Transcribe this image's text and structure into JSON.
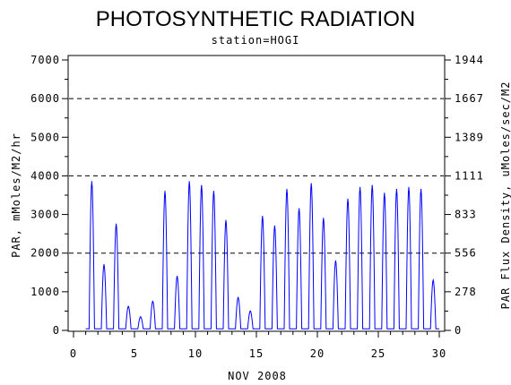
{
  "chart_data": {
    "type": "line",
    "title": "PHOTOSYNTHETIC RADIATION",
    "subtitle": "station=HOGI",
    "xlabel": "NOV 2008",
    "ylabel": "PAR, mMoles/M2/hr",
    "y2label": "PAR Flux Density, uMoles/sec/M2",
    "xlim": [
      0,
      30
    ],
    "ylim": [
      0,
      7000
    ],
    "xticks": [
      "0",
      "5",
      "10",
      "15",
      "20",
      "25",
      "30"
    ],
    "yticks": [
      "0",
      "1000",
      "2000",
      "3000",
      "4000",
      "5000",
      "6000",
      "7000"
    ],
    "y2ticks": [
      "0",
      "278",
      "556",
      "833",
      "1111",
      "1389",
      "1667",
      "1944"
    ],
    "dashed_gridlines_y": [
      2000,
      4000,
      6000
    ],
    "line_color": "#0000ff",
    "series": [
      {
        "name": "",
        "daily_peaks": [
          {
            "day": 1.5,
            "value": 3850
          },
          {
            "day": 2.5,
            "value": 1700
          },
          {
            "day": 3.5,
            "value": 2750
          },
          {
            "day": 4.5,
            "value": 620
          },
          {
            "day": 5.5,
            "value": 350
          },
          {
            "day": 6.5,
            "value": 750
          },
          {
            "day": 7.5,
            "value": 3600
          },
          {
            "day": 8.5,
            "value": 1400
          },
          {
            "day": 9.5,
            "value": 3850
          },
          {
            "day": 10.5,
            "value": 3750
          },
          {
            "day": 11.5,
            "value": 3600
          },
          {
            "day": 12.5,
            "value": 2850
          },
          {
            "day": 13.5,
            "value": 850
          },
          {
            "day": 14.5,
            "value": 500
          },
          {
            "day": 15.5,
            "value": 2950
          },
          {
            "day": 16.5,
            "value": 2700
          },
          {
            "day": 17.5,
            "value": 3650
          },
          {
            "day": 18.5,
            "value": 3150
          },
          {
            "day": 19.5,
            "value": 3800
          },
          {
            "day": 20.5,
            "value": 2900
          },
          {
            "day": 21.5,
            "value": 1800
          },
          {
            "day": 22.5,
            "value": 3400
          },
          {
            "day": 23.5,
            "value": 3700
          },
          {
            "day": 24.5,
            "value": 3750
          },
          {
            "day": 25.5,
            "value": 3550
          },
          {
            "day": 26.5,
            "value": 3650
          },
          {
            "day": 27.5,
            "value": 3700
          },
          {
            "day": 28.5,
            "value": 3650
          },
          {
            "day": 29.5,
            "value": 1300
          }
        ]
      }
    ]
  }
}
